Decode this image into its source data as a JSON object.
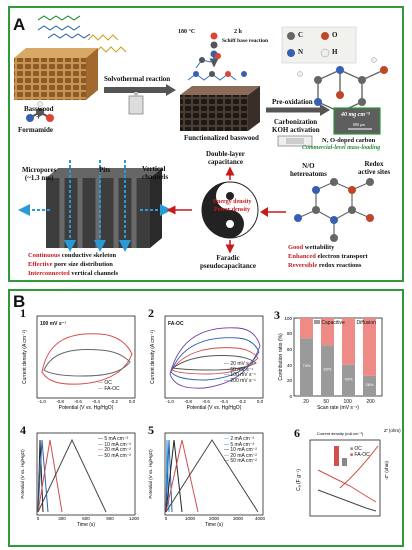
{
  "panelA": {
    "label": "A",
    "basswood": "Basswood",
    "plus": "+",
    "formamide": "Formamide",
    "solvothermal": "Solvothermal reaction",
    "schiff_temp": "180 °C",
    "schiff_time": "2 h",
    "schiff_label": "Schiff base reaction",
    "functionalized": "Functionalized basswood",
    "legend": [
      "C",
      "O",
      "N",
      "H"
    ],
    "preox": "Pre-oxidation",
    "carbonization": "Carbonization",
    "koh": "KOH activation",
    "scale": "800 μm",
    "loading_value": "40 mg cm⁻²",
    "nodoped": "N, O-doped carbon",
    "commercial": "Commercial-level mass-loading",
    "micropores_1": "Micropores",
    "micropores_2": "(~1.3 nm)",
    "pits": "Pits",
    "vertical_1": "Vertical",
    "vertical_2": "channels",
    "skeleton": [
      {
        "r": "Continuous",
        "b": " conductive skeleton"
      },
      {
        "r": "Effective",
        "b": " pore size distribution"
      },
      {
        "r": "Interconnected",
        "b": " vertical channels"
      }
    ],
    "double_1": "Double-layer",
    "double_2": "capacitance",
    "yin_1": "Energy density",
    "yin_2": "Power density",
    "faradic_1": "Faradic",
    "faradic_2": "pseudocapacitance",
    "hetero_1": "N/O",
    "hetero_2": "heteroatoms",
    "redox_1": "Redox",
    "redox_2": "active sites",
    "props": [
      {
        "r": "Good",
        "b": " wettability"
      },
      {
        "r": "Enhanced",
        "b": " electron transport"
      },
      {
        "r": "Reversible",
        "b": " redox reactions"
      }
    ]
  },
  "panelB": {
    "label": "B",
    "sub": [
      "1",
      "2",
      "3",
      "4",
      "5",
      "6"
    ],
    "p1_note": "100 mV s⁻¹",
    "p1_legend": [
      "OC",
      "FA-OC"
    ],
    "p2_title": "FA-OC",
    "p2_legend": [
      "20 mV s⁻¹",
      "50 mV s⁻¹",
      "100 mV s⁻¹",
      "200 mV s⁻¹"
    ],
    "cv_ylabel": "Current density (A cm⁻²)",
    "cv_xlabel": "Potential (V vs. Hg/HgO)",
    "cv_xticks": [
      "-1.0",
      "-0.8",
      "-0.6",
      "-0.4",
      "-0.2",
      "0.0"
    ],
    "p3_legend": [
      "Capacitive",
      "Diffusion"
    ],
    "p3_ylabel": "Contribution ratio (%)",
    "p3_xlabel": "Scan rate (mV s⁻¹)",
    "p3_cats": [
      "20",
      "50",
      "100",
      "200"
    ],
    "p3_yticks": [
      "0",
      "20",
      "40",
      "60",
      "80",
      "100"
    ],
    "p3_labels": [
      "74%",
      "65%",
      "40%",
      "26%"
    ],
    "gcd_ylabel": "Potential (V vs. Hg/HgO)",
    "gcd_xlabel": "Time (s)",
    "p4_legend": [
      "5 mA cm⁻²",
      "10 mA cm⁻²",
      "20 mA cm⁻²",
      "50 mA cm⁻²"
    ],
    "p4_xticks": [
      "0",
      "300",
      "600",
      "900",
      "1200"
    ],
    "p5_legend": [
      "2 mA cm⁻²",
      "5 mA cm⁻²",
      "10 mA cm⁻²",
      "20 mA cm⁻²",
      "50 mA cm⁻²"
    ],
    "p5_xticks": [
      "0",
      "1000",
      "2000",
      "3000",
      "4000"
    ],
    "p6_top": "Current density (mA cm⁻²)",
    "p6_ylabel": "Cₐ (F g⁻¹)",
    "p6_legend": [
      "OC",
      "FA-OC"
    ],
    "p6_z": "Z' (ohm)",
    "p6_zz": "-Z'' (ohm)"
  }
}
